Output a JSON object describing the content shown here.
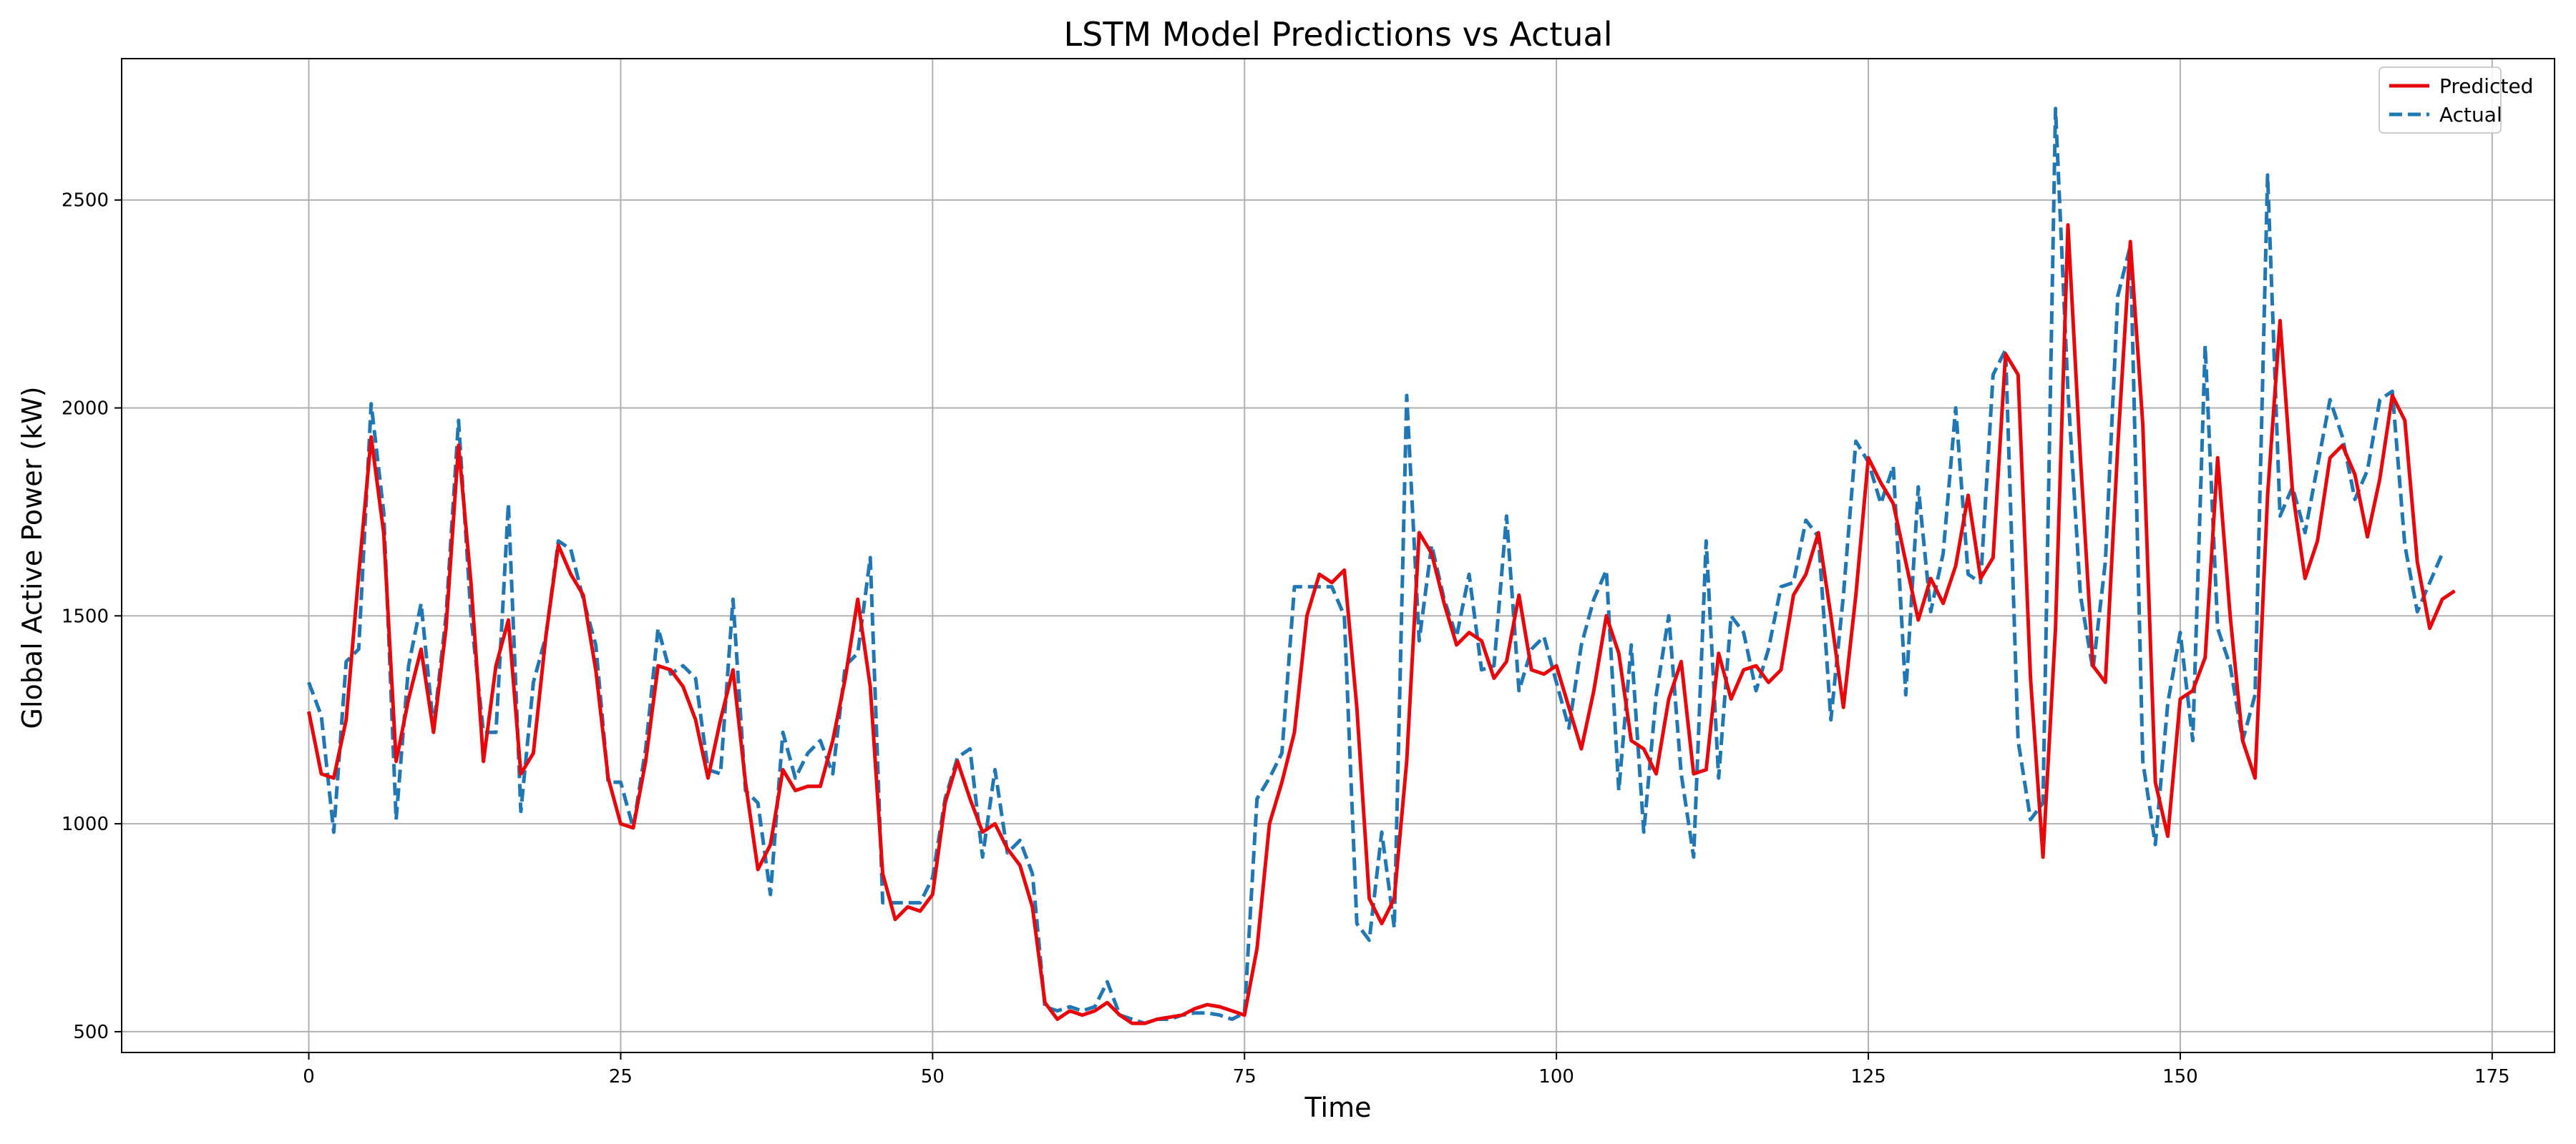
{
  "chart_data": {
    "type": "line",
    "title": "LSTM Model Predictions vs Actual",
    "xlabel": "Time",
    "ylabel": "Global Active Power (kW)",
    "xlim": [
      -15,
      180
    ],
    "ylim": [
      450,
      2840
    ],
    "xticks": [
      0,
      25,
      50,
      75,
      100,
      125,
      150,
      175
    ],
    "yticks": [
      500,
      1000,
      1500,
      2000,
      2500
    ],
    "grid": true,
    "legend_position": "top-right",
    "series": [
      {
        "name": "Predicted",
        "color": "#e8080c",
        "style": "solid",
        "values": [
          1270,
          1120,
          1110,
          1250,
          1600,
          1930,
          1700,
          1150,
          1300,
          1420,
          1220,
          1470,
          1910,
          1580,
          1150,
          1380,
          1490,
          1120,
          1170,
          1450,
          1670,
          1600,
          1550,
          1370,
          1110,
          1000,
          990,
          1150,
          1380,
          1370,
          1330,
          1250,
          1110,
          1250,
          1370,
          1100,
          890,
          950,
          1130,
          1080,
          1090,
          1090,
          1200,
          1350,
          1540,
          1330,
          880,
          770,
          800,
          790,
          830,
          1050,
          1150,
          1060,
          980,
          1000,
          940,
          900,
          800,
          570,
          530,
          550,
          540,
          550,
          570,
          540,
          520,
          520,
          530,
          535,
          540,
          555,
          565,
          560,
          550,
          540,
          700,
          1000,
          1100,
          1220,
          1500,
          1600,
          1580,
          1610,
          1280,
          820,
          760,
          820,
          1150,
          1700,
          1650,
          1530,
          1430,
          1460,
          1440,
          1350,
          1390,
          1550,
          1370,
          1360,
          1380,
          1280,
          1180,
          1320,
          1500,
          1410,
          1200,
          1180,
          1120,
          1300,
          1390,
          1120,
          1130,
          1410,
          1300,
          1370,
          1380,
          1340,
          1370,
          1550,
          1600,
          1700,
          1500,
          1280,
          1550,
          1880,
          1820,
          1770,
          1630,
          1490,
          1590,
          1530,
          1620,
          1790,
          1590,
          1640,
          2130,
          2080,
          1350,
          920,
          1470,
          2440,
          1880,
          1380,
          1340,
          1910,
          2400,
          1960,
          1100,
          970,
          1300,
          1320,
          1400,
          1880,
          1500,
          1200,
          1110,
          1790,
          2210,
          1800,
          1590,
          1680,
          1880,
          1910,
          1840,
          1690,
          1830,
          2030,
          1970,
          1630,
          1470,
          1540,
          1560
        ]
      },
      {
        "name": "Actual",
        "color": "#1f77b4",
        "style": "dashed",
        "values": [
          1340,
          1260,
          980,
          1390,
          1420,
          2010,
          1750,
          1010,
          1380,
          1530,
          1230,
          1500,
          1970,
          1500,
          1220,
          1220,
          1770,
          1030,
          1340,
          1450,
          1680,
          1660,
          1540,
          1430,
          1100,
          1100,
          990,
          1180,
          1470,
          1360,
          1380,
          1350,
          1130,
          1120,
          1540,
          1080,
          1050,
          830,
          1220,
          1110,
          1170,
          1200,
          1120,
          1380,
          1410,
          1640,
          810,
          810,
          810,
          810,
          870,
          1060,
          1160,
          1180,
          920,
          1130,
          930,
          960,
          880,
          560,
          550,
          560,
          550,
          560,
          620,
          540,
          530,
          520,
          530,
          530,
          540,
          545,
          545,
          540,
          530,
          545,
          1060,
          1110,
          1170,
          1570,
          1570,
          1570,
          1570,
          1500,
          760,
          720,
          980,
          750,
          2030,
          1440,
          1670,
          1540,
          1450,
          1600,
          1370,
          1380,
          1740,
          1320,
          1420,
          1450,
          1340,
          1230,
          1430,
          1540,
          1610,
          1080,
          1430,
          980,
          1310,
          1500,
          1120,
          920,
          1680,
          1110,
          1500,
          1460,
          1320,
          1420,
          1570,
          1580,
          1730,
          1690,
          1250,
          1550,
          1920,
          1870,
          1770,
          1860,
          1310,
          1810,
          1510,
          1650,
          2000,
          1600,
          1580,
          2080,
          2140,
          1200,
          1010,
          1050,
          2720,
          2040,
          1550,
          1370,
          1630,
          2270,
          2390,
          1150,
          950,
          1290,
          1460,
          1200,
          2150,
          1470,
          1380,
          1200,
          1310,
          2560,
          1740,
          1810,
          1700,
          1860,
          2020,
          1930,
          1780,
          1850,
          2020,
          2040,
          1670,
          1510,
          1580,
          1650
        ]
      }
    ]
  }
}
